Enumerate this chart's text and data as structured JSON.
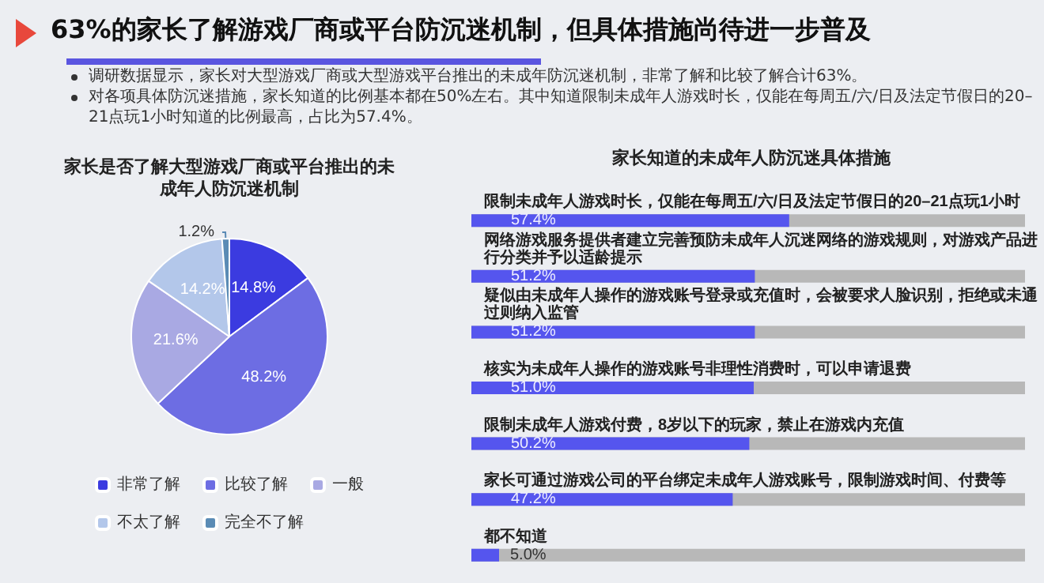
{
  "chart_data": [
    {
      "type": "other",
      "title": "63%的家长了解游戏厂商或平台防沉迷机制，但具体措施尚待进一步普及",
      "annotations": [
        "调研数据显示，家长对大型游戏厂商或大型游戏平台推出的未成年防沉迷机制，非常了解和比较了解合计63%。",
        "对各项具体防沉迷措施，家长知道的比例基本都在50%左右。其中知道限制未成年人游戏时长，仅能在每周五/六/日及法定节假日的20–21点玩1小时知道的比例最高，占比为57.4%。"
      ]
    },
    {
      "type": "pie",
      "title": "家长是否了解大型游戏厂商或平台推出的未成年人防沉迷机制",
      "categories": [
        "非常了解",
        "比较了解",
        "一般",
        "不太了解",
        "完全不了解"
      ],
      "values": [
        14.8,
        48.2,
        21.6,
        14.2,
        1.2
      ],
      "value_labels": [
        "14.8%",
        "48.2%",
        "21.6%",
        "14.2%",
        "1.2%"
      ],
      "colors": [
        "#3b3be0",
        "#6d6de3",
        "#a9a9e3",
        "#b3c7ea",
        "#5a8bb5"
      ],
      "legend": "bottom"
    },
    {
      "type": "bar",
      "orientation": "horizontal",
      "title": "家长知道的未成年人防沉迷具体措施",
      "categories": [
        "限制未成年人游戏时长，仅能在每周五/六/日及法定节假日的20–21点玩1小时",
        "网络游戏服务提供者建立完善预防未成年人沉迷网络的游戏规则，对游戏产品进行分类并予以适龄提示",
        "疑似由未成年人操作的游戏账号登录或充值时，会被要求人脸识别，拒绝或未通过则纳入监管",
        "核实为未成年人操作的游戏账号非理性消费时，可以申请退费",
        "限制未成年人游戏付费，8岁以下的玩家，禁止在游戏内充值",
        "家长可通过游戏公司的平台绑定未成年人游戏账号，限制游戏时间、付费等",
        "都不知道"
      ],
      "values": [
        57.4,
        51.2,
        51.2,
        51.0,
        50.2,
        47.2,
        5.0
      ],
      "value_labels": [
        "57.4%",
        "51.2%",
        "51.2%",
        "51.0%",
        "50.2%",
        "47.2%",
        "5.0%"
      ],
      "color": "#5555ee",
      "xlim": [
        0,
        100
      ],
      "tick_labels": "y"
    }
  ]
}
